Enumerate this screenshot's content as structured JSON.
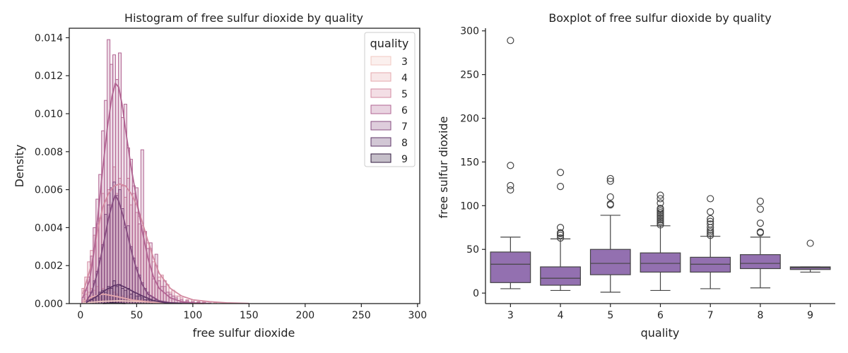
{
  "chart_data": [
    {
      "type": "histogram",
      "title": "Histogram of free sulfur dioxide by quality",
      "xlabel": "free sulfur dioxide",
      "ylabel": "Density",
      "xlim": [
        -10,
        302
      ],
      "ylim": [
        0,
        0.0145
      ],
      "xticks": [
        0,
        50,
        100,
        150,
        200,
        250,
        300
      ],
      "yticks": [
        0.0,
        0.002,
        0.004,
        0.006,
        0.008,
        0.01,
        0.012,
        0.014
      ],
      "ytick_labels": [
        "0.000",
        "0.002",
        "0.004",
        "0.006",
        "0.008",
        "0.010",
        "0.012",
        "0.014"
      ],
      "legend": {
        "title": "quality",
        "placement": "top-right",
        "entries": [
          "3",
          "4",
          "5",
          "6",
          "7",
          "8",
          "9"
        ]
      },
      "bin_width": 2.5,
      "series": [
        {
          "name": "3",
          "color": "#f0c9c2",
          "kde": [
            [
              2,
              3e-05
            ],
            [
              20,
              0.00012
            ],
            [
              35,
              0.00015
            ],
            [
              55,
              0.0001
            ],
            [
              80,
              3e-05
            ],
            [
              110,
              5e-06
            ]
          ]
        },
        {
          "name": "4",
          "color": "#e6a9ae",
          "kde": [
            [
              2,
              0.0001
            ],
            [
              10,
              0.00035
            ],
            [
              20,
              0.0005
            ],
            [
              30,
              0.0004
            ],
            [
              45,
              0.0002
            ],
            [
              65,
              6e-05
            ],
            [
              85,
              2e-05
            ],
            [
              110,
              5e-06
            ]
          ]
        },
        {
          "name": "5",
          "color": "#d38aa1",
          "kde": [
            [
              2,
              0.0005
            ],
            [
              10,
              0.0021
            ],
            [
              15,
              0.0038
            ],
            [
              20,
              0.0051
            ],
            [
              25,
              0.0058
            ],
            [
              30,
              0.0062
            ],
            [
              35,
              0.0063
            ],
            [
              40,
              0.0062
            ],
            [
              45,
              0.0058
            ],
            [
              50,
              0.0052
            ],
            [
              55,
              0.0043
            ],
            [
              60,
              0.0033
            ],
            [
              65,
              0.0024
            ],
            [
              70,
              0.0016
            ],
            [
              80,
              0.0008
            ],
            [
              90,
              0.0004
            ],
            [
              100,
              0.0002
            ],
            [
              115,
              0.0001
            ],
            [
              130,
              4e-05
            ],
            [
              150,
              1e-05
            ]
          ]
        },
        {
          "name": "6",
          "color": "#b16492",
          "kde": [
            [
              2,
              0.0003
            ],
            [
              8,
              0.0012
            ],
            [
              12,
              0.0027
            ],
            [
              16,
              0.0049
            ],
            [
              20,
              0.0072
            ],
            [
              24,
              0.0093
            ],
            [
              28,
              0.0109
            ],
            [
              31,
              0.0116
            ],
            [
              34,
              0.0114
            ],
            [
              37,
              0.0105
            ],
            [
              40,
              0.0092
            ],
            [
              45,
              0.0072
            ],
            [
              50,
              0.0055
            ],
            [
              55,
              0.0038
            ],
            [
              60,
              0.0024
            ],
            [
              65,
              0.0014
            ],
            [
              70,
              0.0008
            ],
            [
              80,
              0.0003
            ],
            [
              90,
              0.0001
            ],
            [
              100,
              4e-05
            ],
            [
              115,
              1e-05
            ]
          ]
        },
        {
          "name": "7",
          "color": "#874d81",
          "kde": [
            [
              5,
              0.0001
            ],
            [
              10,
              0.0006
            ],
            [
              15,
              0.0016
            ],
            [
              20,
              0.003
            ],
            [
              25,
              0.0045
            ],
            [
              29,
              0.0054
            ],
            [
              31,
              0.0057
            ],
            [
              34,
              0.0054
            ],
            [
              38,
              0.0046
            ],
            [
              42,
              0.0036
            ],
            [
              46,
              0.0026
            ],
            [
              50,
              0.0018
            ],
            [
              55,
              0.001
            ],
            [
              60,
              0.0005
            ],
            [
              70,
              0.00015
            ],
            [
              80,
              4e-05
            ],
            [
              100,
              1e-05
            ]
          ]
        },
        {
          "name": "8",
          "color": "#5e3567",
          "kde": [
            [
              5,
              5e-05
            ],
            [
              15,
              0.0004
            ],
            [
              22,
              0.0007
            ],
            [
              30,
              0.00095
            ],
            [
              34,
              0.001
            ],
            [
              40,
              0.00085
            ],
            [
              48,
              0.0006
            ],
            [
              55,
              0.0004
            ],
            [
              65,
              0.00016
            ],
            [
              75,
              5e-05
            ],
            [
              90,
              1e-05
            ]
          ]
        },
        {
          "name": "9",
          "color": "#301a3e",
          "kde": [
            [
              20,
              5e-06
            ],
            [
              30,
              3e-05
            ],
            [
              40,
              5e-06
            ]
          ]
        }
      ],
      "histograms": [
        {
          "name": "3",
          "x": [
            2.5,
            5,
            7.5,
            10,
            12.5,
            15,
            17.5,
            20,
            22.5,
            25,
            27.5,
            30,
            32.5,
            35,
            37.5,
            40,
            42.5,
            45,
            47.5,
            50,
            52.5,
            55,
            57.5,
            60,
            62.5,
            65,
            67.5,
            70,
            72.5,
            75
          ],
          "y": [
            0.0001,
            0.0002,
            0.0002,
            0.0003,
            0.0002,
            0.0004,
            0.0003,
            0.0002,
            0.0003,
            0.0004,
            0.0002,
            0.0003,
            0.0005,
            0.0002,
            0.0003,
            0.0002,
            0.0004,
            0.0002,
            0.0001,
            0.0003,
            0.0001,
            0.0002,
            0.0001,
            0.0002,
            0.0001,
            0.0001,
            0.0001,
            0.0001,
            5e-05,
            5e-05
          ]
        },
        {
          "name": "4",
          "x": [
            2.5,
            5,
            7.5,
            10,
            12.5,
            15,
            17.5,
            20,
            22.5,
            25,
            27.5,
            30,
            32.5,
            35,
            37.5,
            40,
            42.5,
            45,
            47.5,
            50,
            52.5,
            55,
            57.5,
            60,
            62.5,
            65,
            67.5,
            70,
            72.5,
            75,
            80,
            85,
            90
          ],
          "y": [
            0.0002,
            0.0005,
            0.0006,
            0.0008,
            0.0007,
            0.0009,
            0.0006,
            0.0008,
            0.0005,
            0.0007,
            0.0004,
            0.0006,
            0.0005,
            0.0003,
            0.0004,
            0.0003,
            0.0002,
            0.0003,
            0.0002,
            0.0002,
            0.0001,
            0.0002,
            0.0001,
            0.0001,
            0.0001,
            8e-05,
            5e-05,
            6e-05,
            4e-05,
            3e-05,
            3e-05,
            2e-05,
            2e-05
          ]
        },
        {
          "name": "5",
          "x": [
            2.5,
            5,
            7.5,
            10,
            12.5,
            15,
            17.5,
            20,
            22.5,
            25,
            27.5,
            30,
            32.5,
            35,
            37.5,
            40,
            42.5,
            45,
            47.5,
            50,
            52.5,
            55,
            57.5,
            60,
            62.5,
            65,
            67.5,
            70,
            72.5,
            75,
            77.5,
            80,
            82.5,
            85,
            87.5,
            90,
            95,
            100,
            105,
            110,
            120,
            130
          ],
          "y": [
            0.0008,
            0.0014,
            0.0022,
            0.0028,
            0.0036,
            0.0042,
            0.0045,
            0.0058,
            0.0054,
            0.006,
            0.0052,
            0.0072,
            0.0058,
            0.0066,
            0.0062,
            0.0056,
            0.0066,
            0.0052,
            0.0058,
            0.0048,
            0.0046,
            0.0041,
            0.0038,
            0.0032,
            0.0029,
            0.0022,
            0.002,
            0.0014,
            0.0015,
            0.0009,
            0.001,
            0.0006,
            0.0007,
            0.0004,
            0.0004,
            0.0003,
            0.0002,
            0.0002,
            0.0001,
            0.0001,
            5e-05,
            4e-05
          ]
        },
        {
          "name": "6",
          "x": [
            2.5,
            5,
            7.5,
            10,
            12.5,
            15,
            17.5,
            20,
            22.5,
            25,
            27.5,
            30,
            32.5,
            35,
            37.5,
            40,
            42.5,
            45,
            47.5,
            50,
            52.5,
            55,
            57.5,
            60,
            62.5,
            65,
            67.5,
            70,
            72.5,
            75,
            77.5,
            80,
            82.5,
            85,
            90,
            95,
            100,
            105,
            110,
            115
          ],
          "y": [
            0.0003,
            0.0007,
            0.0014,
            0.0025,
            0.004,
            0.0055,
            0.0068,
            0.0091,
            0.0107,
            0.0139,
            0.0126,
            0.0131,
            0.0118,
            0.0132,
            0.0098,
            0.0105,
            0.0082,
            0.0076,
            0.0062,
            0.0061,
            0.0042,
            0.0081,
            0.0038,
            0.0029,
            0.0032,
            0.0013,
            0.0026,
            0.0012,
            0.0009,
            0.0012,
            0.0006,
            0.0005,
            0.0004,
            0.0003,
            0.0002,
            0.00015,
            0.0001,
            8e-05,
            5e-05,
            3e-05
          ]
        },
        {
          "name": "7",
          "x": [
            7.5,
            10,
            12.5,
            15,
            17.5,
            20,
            22.5,
            25,
            27.5,
            30,
            32.5,
            35,
            37.5,
            40,
            42.5,
            45,
            47.5,
            50,
            52.5,
            55,
            57.5,
            60,
            62.5,
            65,
            67.5,
            70,
            75,
            80
          ],
          "y": [
            0.0002,
            0.0006,
            0.0012,
            0.0017,
            0.0024,
            0.0031,
            0.0047,
            0.0052,
            0.0061,
            0.0064,
            0.0057,
            0.006,
            0.005,
            0.004,
            0.0041,
            0.003,
            0.0024,
            0.0019,
            0.0015,
            0.0011,
            0.0008,
            0.0006,
            0.0004,
            0.0003,
            0.0002,
            0.00015,
            0.0001,
            5e-05
          ]
        },
        {
          "name": "8",
          "x": [
            10,
            12.5,
            15,
            17.5,
            20,
            22.5,
            25,
            27.5,
            30,
            32.5,
            35,
            37.5,
            40,
            42.5,
            45,
            47.5,
            50,
            52.5,
            55,
            57.5,
            60,
            62.5,
            65,
            67.5,
            70
          ],
          "y": [
            0.0002,
            0.0003,
            0.0004,
            0.0006,
            0.0007,
            0.0006,
            0.0009,
            0.0008,
            0.0012,
            0.0009,
            0.001,
            0.0008,
            0.0007,
            0.0008,
            0.0005,
            0.0006,
            0.0004,
            0.0004,
            0.0003,
            0.0002,
            0.0002,
            0.00015,
            0.0001,
            8e-05,
            5e-05
          ]
        },
        {
          "name": "9",
          "x": [
            25,
            27.5,
            30,
            32.5
          ],
          "y": [
            3e-05,
            5e-05,
            4e-05,
            2e-05
          ]
        }
      ]
    },
    {
      "type": "box",
      "title": "Boxplot of free sulfur dioxide by quality",
      "xlabel": "quality",
      "ylabel": "free sulfur dioxide",
      "ylim": [
        -12,
        303
      ],
      "yticks": [
        0,
        50,
        100,
        150,
        200,
        250,
        300
      ],
      "color": "#9370b0",
      "categories": [
        "3",
        "4",
        "5",
        "6",
        "7",
        "8",
        "9"
      ],
      "boxes": [
        {
          "q1": 12,
          "median": 33,
          "q3": 47,
          "whisker_low": 5,
          "whisker_high": 64,
          "outliers": [
            118,
            123,
            146,
            289
          ]
        },
        {
          "q1": 9,
          "median": 17,
          "q3": 30,
          "whisker_low": 3,
          "whisker_high": 62,
          "outliers": [
            63,
            66,
            68,
            69,
            75,
            122,
            138
          ]
        },
        {
          "q1": 21,
          "median": 34,
          "q3": 50,
          "whisker_low": 1,
          "whisker_high": 89,
          "outliers": [
            101,
            102,
            110,
            128,
            131
          ]
        },
        {
          "q1": 24,
          "median": 34,
          "q3": 46,
          "whisker_low": 3,
          "whisker_high": 77,
          "outliers": [
            78,
            80,
            82,
            84,
            86,
            88,
            90,
            92,
            94,
            96,
            97,
            103,
            108,
            112
          ]
        },
        {
          "q1": 24,
          "median": 33,
          "q3": 41,
          "whisker_low": 5,
          "whisker_high": 65,
          "outliers": [
            66,
            68,
            70,
            72,
            75,
            79,
            82,
            85,
            93,
            108
          ]
        },
        {
          "q1": 28,
          "median": 34,
          "q3": 44,
          "whisker_low": 6,
          "whisker_high": 64,
          "outliers": [
            69,
            70,
            80,
            96,
            105
          ]
        },
        {
          "q1": 27,
          "median": 29,
          "q3": 30,
          "whisker_low": 24,
          "whisker_high": 30,
          "outliers": [
            57
          ]
        }
      ]
    }
  ]
}
